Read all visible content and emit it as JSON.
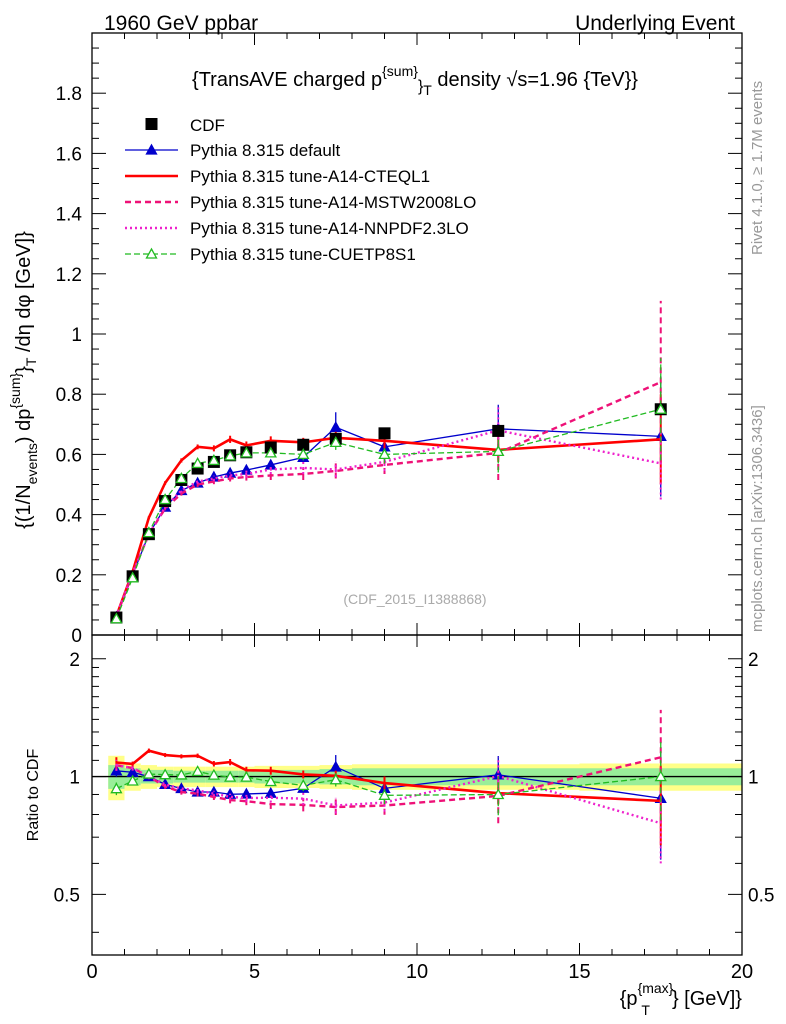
{
  "header": {
    "left": "1960 GeV ppbar",
    "right": "Underlying Event"
  },
  "side_labels": {
    "rivet": "Rivet 4.1.0, ≥ 1.7M events",
    "mcplots": "mcplots.cern.ch [arXiv:1306.3436]"
  },
  "watermark": "(CDF_2015_I1388868)",
  "chart_data": {
    "type": "line",
    "title": "{TransAVE charged p^{sum}_T density √s=1.96 {TeV}}",
    "title_parts": {
      "pre": "{TransAVE charged p",
      "sup": "{sum}",
      "sub": "}",
      "sub2": "T",
      "post": " density ",
      "sqrt": "√",
      "post2": "s=1.96 {TeV}}"
    },
    "xlabel": "{p_T^{max}} [GeV]}",
    "xlabel_parts": {
      "pre": "{p",
      "sup": "{max}",
      "sub": "T",
      "post": "} [GeV]}"
    },
    "ylabel": "{(1/N_events) dp^{sum}_T /dη dφ [GeV]}",
    "ylabel_parts": {
      "a": "{(1/N",
      "a_sub": "events",
      "b": ") dp",
      "b_sup": "{sum}",
      "c": "}",
      "c_sub": "T",
      "d": " /dη  dφ [GeV]}"
    },
    "ratio_ylabel": "Ratio to CDF",
    "xlim": [
      0,
      20
    ],
    "ylim": [
      0,
      2.0
    ],
    "ratio_ylim": [
      0.35,
      2.3
    ],
    "x_ticks": [
      0,
      5,
      10,
      15,
      20
    ],
    "x_tick_labels": [
      "0",
      "5",
      "10",
      "15",
      "20"
    ],
    "y_ticks": [
      0,
      0.2,
      0.4,
      0.6,
      0.8,
      1,
      1.2,
      1.4,
      1.6,
      1.8
    ],
    "y_tick_labels": [
      "0",
      "0.2",
      "0.4",
      "0.6",
      "0.8",
      "1",
      "1.2",
      "1.4",
      "1.6",
      "1.8"
    ],
    "ratio_ticks": [
      0.5,
      1,
      2
    ],
    "ratio_tick_labels": [
      "0.5",
      "1",
      "2"
    ],
    "data": {
      "name": "CDF",
      "x": [
        0.75,
        1.25,
        1.75,
        2.25,
        2.75,
        3.25,
        3.75,
        4.25,
        4.75,
        5.5,
        6.5,
        7.5,
        9.0,
        12.5,
        17.5
      ],
      "y": [
        0.058,
        0.195,
        0.335,
        0.445,
        0.515,
        0.553,
        0.575,
        0.597,
        0.607,
        0.623,
        0.632,
        0.652,
        0.67,
        0.678,
        0.75
      ],
      "x_edges": [
        0.5,
        1.0,
        1.5,
        2.0,
        2.5,
        3.0,
        3.5,
        4.0,
        4.5,
        5.0,
        6.0,
        7.0,
        8.0,
        10.0,
        15.0,
        20.0
      ],
      "band_inner": [
        0.07,
        0.05,
        0.04,
        0.04,
        0.035,
        0.035,
        0.035,
        0.035,
        0.035,
        0.04,
        0.04,
        0.045,
        0.05,
        0.05,
        0.05
      ],
      "band_outer": [
        0.13,
        0.08,
        0.07,
        0.06,
        0.06,
        0.06,
        0.06,
        0.06,
        0.06,
        0.065,
        0.065,
        0.07,
        0.075,
        0.075,
        0.08
      ]
    },
    "series": [
      {
        "name": "Pythia 8.315 default",
        "color": "#0000cc",
        "dash": "",
        "width": 1.3,
        "marker": "triangle-filled",
        "x": [
          0.75,
          1.25,
          1.75,
          2.25,
          2.75,
          3.25,
          3.75,
          4.25,
          4.75,
          5.5,
          6.5,
          7.5,
          9.0,
          12.5,
          17.5
        ],
        "y": [
          0.06,
          0.2,
          0.335,
          0.425,
          0.48,
          0.505,
          0.525,
          0.538,
          0.548,
          0.565,
          0.59,
          0.69,
          0.625,
          0.685,
          0.66
        ],
        "err": [
          0.002,
          0.003,
          0.005,
          0.006,
          0.007,
          0.008,
          0.009,
          0.01,
          0.012,
          0.015,
          0.02,
          0.05,
          0.03,
          0.08,
          0.2
        ]
      },
      {
        "name": "Pythia 8.315 tune-A14-CTEQL1",
        "color": "#ff0000",
        "dash": "",
        "width": 2.6,
        "marker": "none",
        "x": [
          0.75,
          1.25,
          1.75,
          2.25,
          2.75,
          3.25,
          3.75,
          4.25,
          4.75,
          5.5,
          6.5,
          7.5,
          9.0,
          12.5,
          17.5
        ],
        "y": [
          0.063,
          0.21,
          0.39,
          0.505,
          0.58,
          0.625,
          0.62,
          0.65,
          0.63,
          0.645,
          0.64,
          0.655,
          0.645,
          0.615,
          0.65
        ],
        "err": [
          0.002,
          0.003,
          0.005,
          0.006,
          0.007,
          0.008,
          0.01,
          0.012,
          0.013,
          0.015,
          0.015,
          0.02,
          0.025,
          0.04,
          0.15
        ]
      },
      {
        "name": "Pythia 8.315 tune-A14-MSTW2008LO",
        "color": "#ee1177",
        "dash": "6,4",
        "width": 2.4,
        "marker": "none",
        "x": [
          0.75,
          1.25,
          1.75,
          2.25,
          2.75,
          3.25,
          3.75,
          4.25,
          4.75,
          5.5,
          6.5,
          7.5,
          9.0,
          12.5,
          17.5
        ],
        "y": [
          0.062,
          0.205,
          0.335,
          0.42,
          0.47,
          0.5,
          0.51,
          0.52,
          0.525,
          0.53,
          0.535,
          0.545,
          0.565,
          0.605,
          0.84
        ],
        "err": [
          0.002,
          0.003,
          0.005,
          0.006,
          0.007,
          0.008,
          0.009,
          0.01,
          0.012,
          0.015,
          0.02,
          0.025,
          0.03,
          0.09,
          0.27
        ]
      },
      {
        "name": "Pythia 8.315 tune-A14-NNPDF2.3LO",
        "color": "#ee22cc",
        "dash": "2,3",
        "width": 2.4,
        "marker": "none",
        "x": [
          0.75,
          1.25,
          1.75,
          2.25,
          2.75,
          3.25,
          3.75,
          4.25,
          4.75,
          5.5,
          6.5,
          7.5,
          9.0,
          12.5,
          17.5
        ],
        "y": [
          0.062,
          0.205,
          0.335,
          0.425,
          0.48,
          0.51,
          0.52,
          0.53,
          0.535,
          0.55,
          0.555,
          0.55,
          0.575,
          0.68,
          0.57
        ],
        "err": [
          0.002,
          0.003,
          0.005,
          0.006,
          0.007,
          0.008,
          0.009,
          0.01,
          0.012,
          0.015,
          0.02,
          0.025,
          0.03,
          0.08,
          0.12
        ]
      },
      {
        "name": "Pythia 8.315 tune-CUETP8S1",
        "color": "#22bb22",
        "dash": "6,3",
        "width": 1.3,
        "marker": "triangle-open",
        "x": [
          0.75,
          1.25,
          1.75,
          2.25,
          2.75,
          3.25,
          3.75,
          4.25,
          4.75,
          5.5,
          6.5,
          7.5,
          9.0,
          12.5,
          17.5
        ],
        "y": [
          0.054,
          0.19,
          0.34,
          0.45,
          0.52,
          0.57,
          0.58,
          0.595,
          0.605,
          0.605,
          0.6,
          0.64,
          0.6,
          0.61,
          0.75
        ],
        "err": [
          0.002,
          0.003,
          0.005,
          0.006,
          0.007,
          0.008,
          0.009,
          0.01,
          0.012,
          0.015,
          0.02,
          0.025,
          0.03,
          0.07,
          0.17
        ]
      }
    ]
  }
}
